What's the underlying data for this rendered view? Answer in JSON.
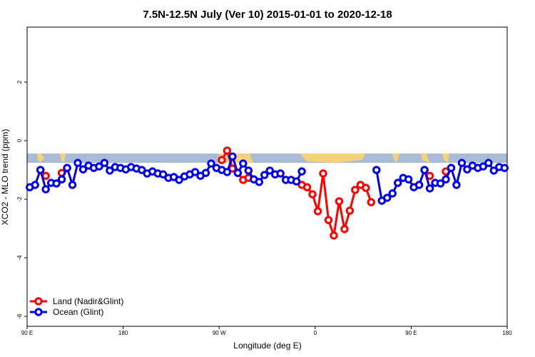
{
  "chart_data": {
    "type": "line",
    "title": "7.5N-12.5N July (Ver 10)   2015-01-01 to 2020-12-18",
    "x_label": "Longitude (deg E)",
    "y_label": "XCO2 - MLO trend (ppm)",
    "x": [
      92.5,
      97.5,
      102.5,
      107.5,
      112.5,
      117.5,
      122.5,
      127.5,
      132.5,
      137.5,
      142.5,
      147.5,
      152.5,
      157.5,
      162.5,
      167.5,
      172.5,
      177.5,
      182.5,
      187.5,
      192.5,
      197.5,
      202.5,
      207.5,
      212.5,
      217.5,
      222.5,
      227.5,
      232.5,
      237.5,
      242.5,
      247.5,
      252.5,
      257.5,
      262.5,
      267.5,
      272.5,
      277.5,
      282.5,
      287.5,
      292.5,
      297.5,
      302.5,
      307.5,
      312.5,
      317.5,
      322.5,
      327.5,
      332.5,
      337.5,
      342.5,
      347.5,
      352.5,
      357.5,
      362.5,
      367.5,
      372.5,
      377.5,
      382.5,
      387.5,
      392.5,
      397.5,
      402.5,
      407.5,
      412.5,
      417.5,
      422.5,
      427.5,
      432.5,
      437.5,
      442.5,
      447.5,
      452.5,
      457.5,
      462.5,
      467.5,
      472.5,
      477.5,
      482.5,
      487.5,
      492.5,
      497.5,
      502.5,
      507.5,
      512.5,
      517.5,
      522.5,
      527.5,
      532.5,
      537.5
    ],
    "series": [
      {
        "name": "Land (Nadir&Glint)",
        "color": "#ff0000",
        "values": [
          null,
          null,
          -1.0,
          -1.2,
          null,
          null,
          -1.1,
          -0.93,
          null,
          null,
          null,
          null,
          null,
          null,
          null,
          null,
          null,
          null,
          null,
          null,
          null,
          null,
          null,
          null,
          null,
          null,
          null,
          null,
          null,
          null,
          null,
          null,
          null,
          null,
          null,
          null,
          -0.66,
          -0.34,
          -0.95,
          -1.1,
          -1.34,
          -1.27,
          null,
          null,
          null,
          null,
          null,
          null,
          null,
          null,
          null,
          -1.51,
          -1.59,
          -1.83,
          -2.41,
          -1.12,
          -2.71,
          -3.24,
          -2.07,
          -3.02,
          -2.39,
          -1.68,
          -1.51,
          -1.61,
          -2.1,
          null,
          null,
          null,
          null,
          null,
          null,
          null,
          null,
          null,
          -1.0,
          -1.2,
          null,
          null,
          -1.05,
          -0.93,
          null,
          null,
          null,
          null,
          null,
          null,
          null,
          null,
          null,
          null
        ]
      },
      {
        "name": "Ocean (Glint)",
        "color": "#0000ee",
        "values": [
          -1.59,
          -1.51,
          -1.0,
          -1.66,
          -1.44,
          -1.46,
          -1.32,
          -0.93,
          -1.51,
          -0.76,
          -0.98,
          -0.85,
          -0.93,
          -0.88,
          -0.76,
          -1.02,
          -0.9,
          -0.93,
          -0.98,
          -0.9,
          -0.95,
          -1.0,
          -1.12,
          -1.05,
          -1.12,
          -1.15,
          -1.27,
          -1.24,
          -1.34,
          -1.22,
          -1.15,
          -1.07,
          -1.2,
          -1.1,
          -0.78,
          -0.93,
          -1.0,
          -1.07,
          -0.54,
          -1.1,
          -0.78,
          -1.02,
          -1.32,
          -1.41,
          -1.17,
          -1.02,
          -1.15,
          -1.12,
          -1.34,
          -1.34,
          -1.39,
          -1.05,
          null,
          null,
          null,
          null,
          null,
          null,
          null,
          null,
          null,
          null,
          null,
          null,
          null,
          -1.0,
          -2.05,
          -1.95,
          -1.8,
          -1.44,
          -1.27,
          -1.32,
          -1.59,
          -1.51,
          -1.0,
          -1.63,
          -1.44,
          -1.46,
          -1.32,
          -0.93,
          -1.51,
          -0.76,
          -0.98,
          -0.85,
          -0.93,
          -0.88,
          -0.76,
          -1.02,
          -0.9,
          -0.93
        ]
      }
    ],
    "xlim": [
      90,
      540
    ],
    "xticks": [
      {
        "value": 90,
        "label": "90 E"
      },
      {
        "value": 180,
        "label": "180"
      },
      {
        "value": 270,
        "label": "90 W"
      },
      {
        "value": 360,
        "label": "0"
      },
      {
        "value": 450,
        "label": "90 E"
      },
      {
        "value": 540,
        "label": "180"
      }
    ],
    "ylim": [
      -6.34,
      3.88
    ],
    "yticks": [
      -6,
      -4,
      -2,
      0,
      2
    ],
    "legend": "bottom-left"
  }
}
